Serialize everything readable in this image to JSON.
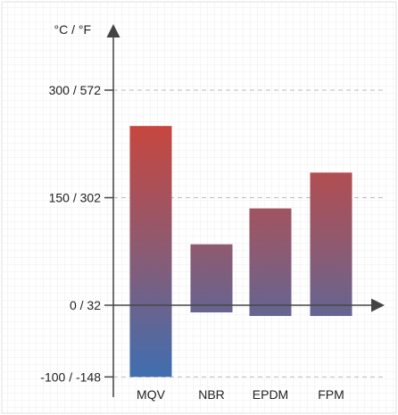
{
  "chart_data": {
    "type": "bar",
    "title": "",
    "xlabel": "",
    "ylabel": "°C / °F",
    "y_unit_label": "°C / °F",
    "categories": [
      "MQV",
      "NBR",
      "EPDM",
      "FPM"
    ],
    "series": [
      {
        "low": [
          -100,
          -10,
          -15,
          -15
        ],
        "high": [
          250,
          85,
          135,
          185
        ]
      }
    ],
    "ylim": [
      -100,
      300
    ],
    "y_ticks": [
      {
        "value": -100,
        "label": "-100 / -148"
      },
      {
        "value": 0,
        "label": "0 / 32"
      },
      {
        "value": 150,
        "label": "150 / 302"
      },
      {
        "value": 300,
        "label": "300 / 572"
      }
    ],
    "grid": true,
    "legend": "none",
    "colors": {
      "bar_top": "#d9402e",
      "bar_mid": "#8f5a70",
      "bar_bottom": "#3f6eb0",
      "axis": "#444444",
      "gridline": "#bbbbbb",
      "grid_minor": "#eeeeee",
      "frame": "#e0e0e0"
    }
  }
}
